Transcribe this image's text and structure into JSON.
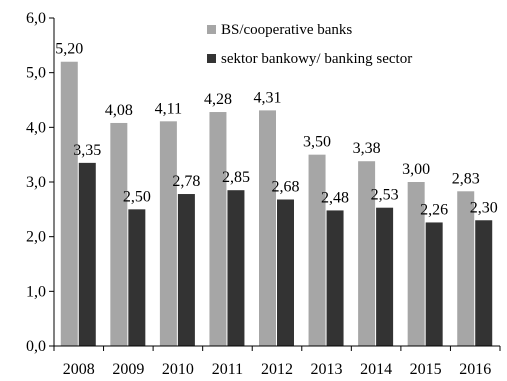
{
  "chart_data": {
    "type": "bar",
    "categories": [
      "2008",
      "2009",
      "2010",
      "2011",
      "2012",
      "2013",
      "2014",
      "2015",
      "2016"
    ],
    "series": [
      {
        "name": "BS/cooperative banks",
        "values": [
          5.2,
          4.08,
          4.11,
          4.28,
          4.31,
          3.5,
          3.38,
          3.0,
          2.83
        ],
        "value_labels": [
          "5,20",
          "4,08",
          "4,11",
          "4,28",
          "4,31",
          "3,50",
          "3,38",
          "3,00",
          "2,83"
        ],
        "color": "#a6a6a6"
      },
      {
        "name": "sektor bankowy/ banking sector",
        "values": [
          3.35,
          2.5,
          2.78,
          2.85,
          2.68,
          2.48,
          2.53,
          2.26,
          2.3
        ],
        "value_labels": [
          "3,35",
          "2,50",
          "2,78",
          "2,85",
          "2,68",
          "2,48",
          "2,53",
          "2,26",
          "2,30"
        ],
        "color": "#333333"
      }
    ],
    "ylim": [
      0,
      6
    ],
    "y_ticks": [
      0,
      1,
      2,
      3,
      4,
      5,
      6
    ],
    "y_tick_labels": [
      "0,0",
      "1,0",
      "2,0",
      "3,0",
      "4,0",
      "5,0",
      "6,0"
    ],
    "grid": false,
    "legend_position": "top-right"
  }
}
